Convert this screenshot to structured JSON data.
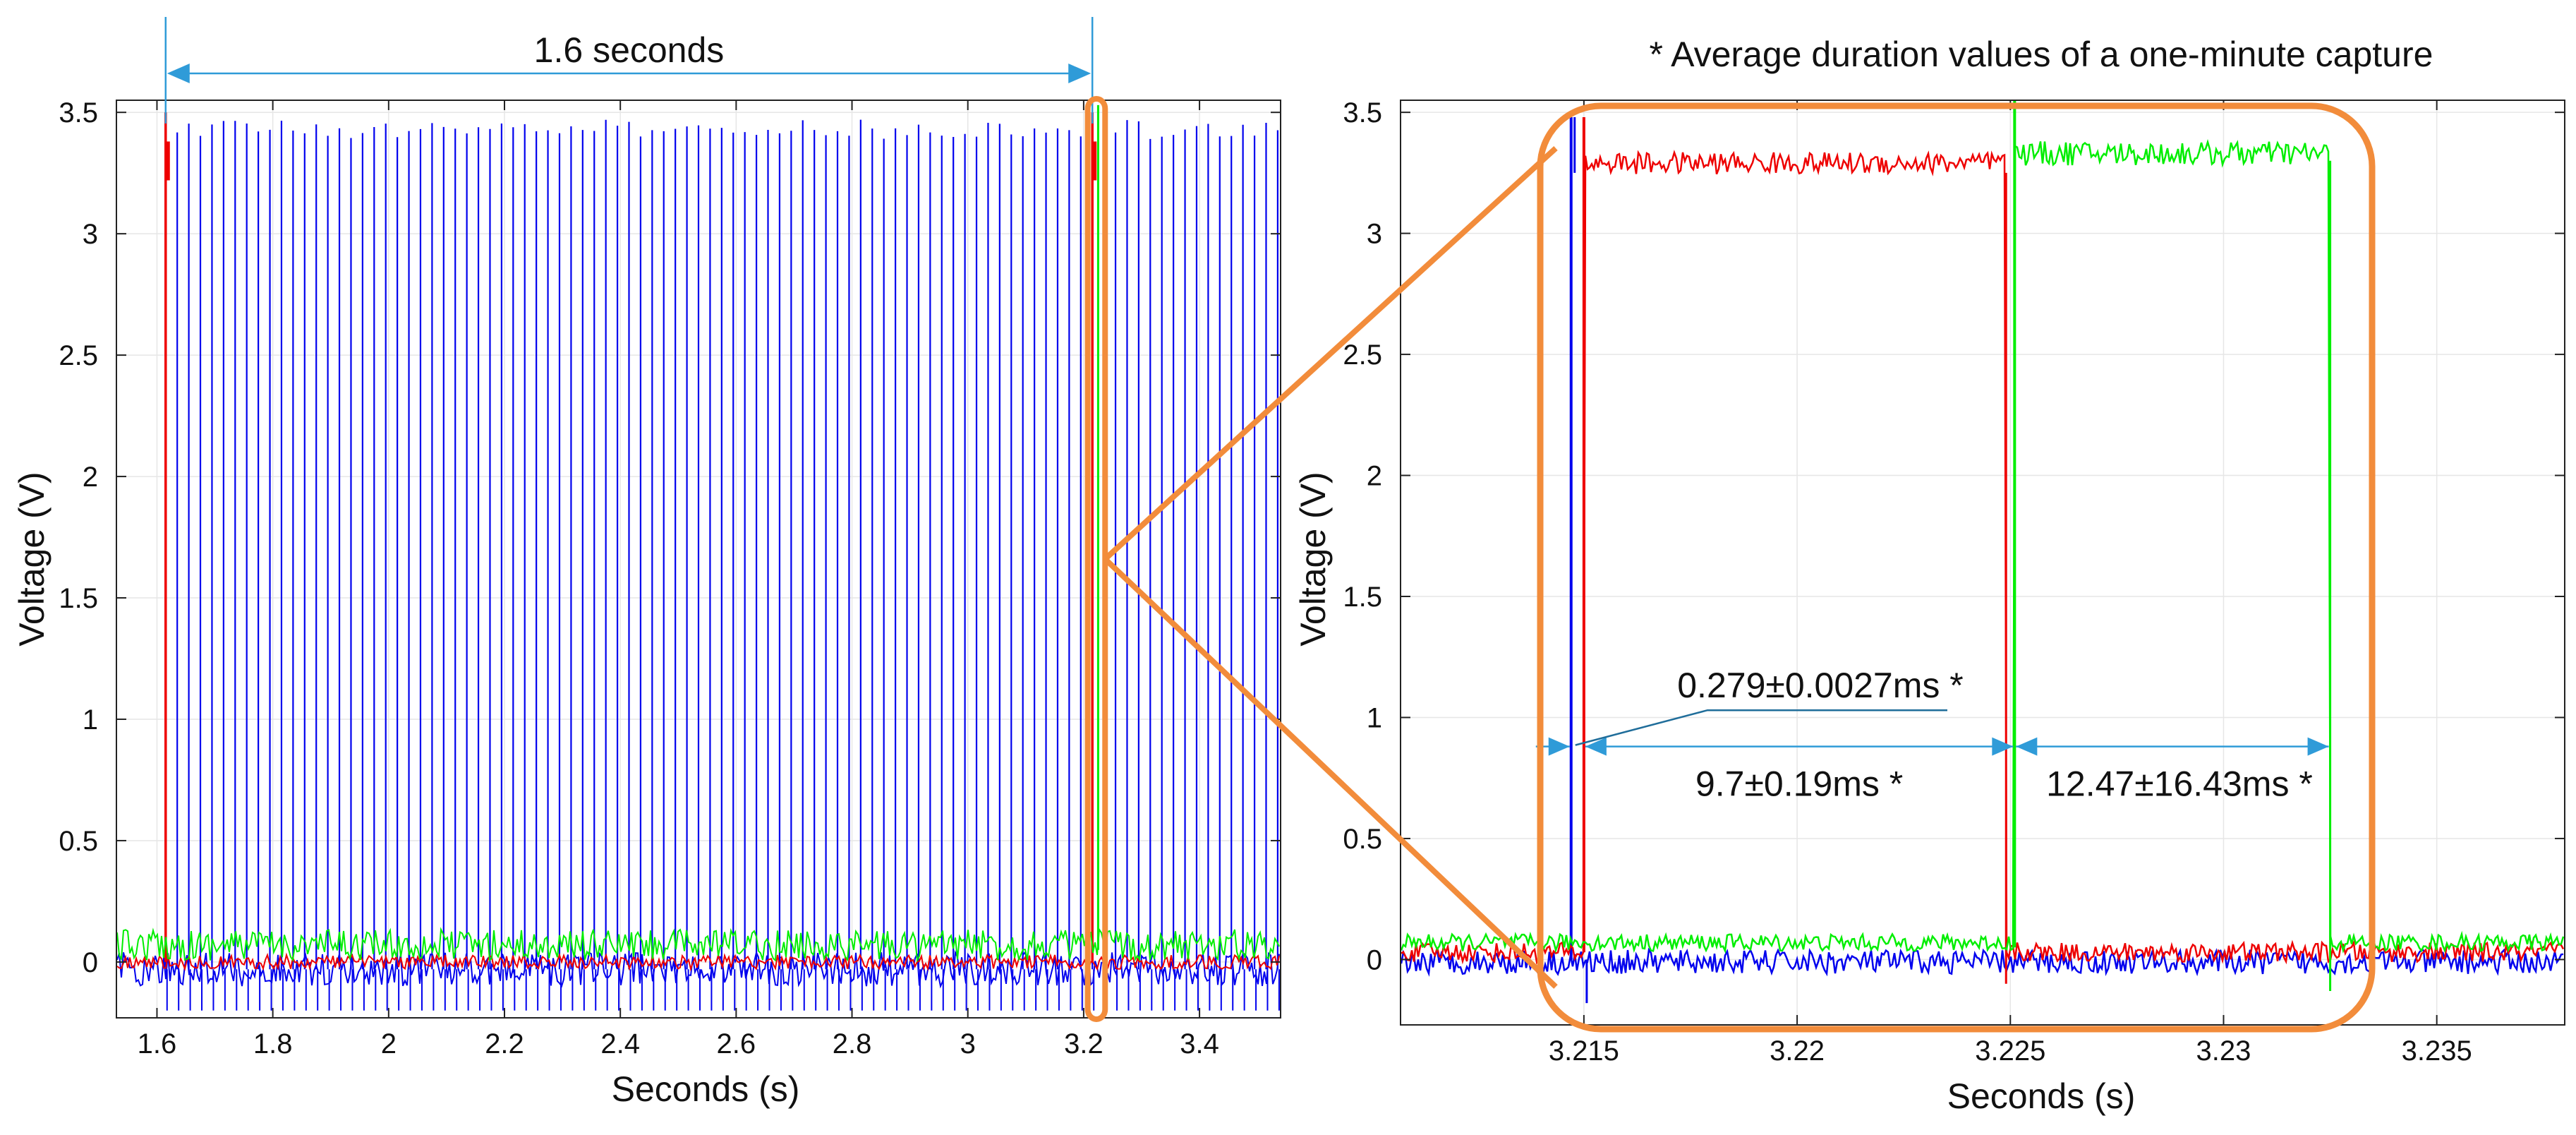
{
  "colors": {
    "blue": "#0000ee",
    "red": "#ee0000",
    "green": "#00ee00",
    "orange": "#f28c3b",
    "annotation": "#2f9bd8",
    "leader": "#1f6d9a",
    "frame": "#222222",
    "grid": "#e6e6e6"
  },
  "chart_data": [
    {
      "id": "overview",
      "type": "line",
      "title": "",
      "xlabel": "Seconds (s)",
      "ylabel": "Voltage (V)",
      "xlim": [
        1.53,
        3.54
      ],
      "ylim": [
        -0.23,
        3.55
      ],
      "xticks": [
        1.6,
        1.8,
        2,
        2.2,
        2.4,
        2.6,
        2.8,
        3,
        3.2,
        3.4
      ],
      "xtick_labels": [
        "1.6",
        "1.8",
        "2",
        "2.2",
        "2.4",
        "2.6",
        "2.8",
        "3",
        "3.2",
        "3.4"
      ],
      "yticks": [
        0,
        0.5,
        1,
        1.5,
        2,
        2.5,
        3,
        3.5
      ],
      "ytick_labels": [
        "0",
        "0.5",
        "1",
        "1.5",
        "2",
        "2.5",
        "3",
        "3.5"
      ],
      "series": [
        {
          "name": "blue",
          "color": "#0000ee",
          "baseline": -0.03,
          "pulse_period_s": 0.02,
          "pulse_peak": 3.47
        },
        {
          "name": "red",
          "color": "#ee0000",
          "baseline": 0.0,
          "pulse_times": [
            1.615,
            3.215
          ],
          "pulse_width_s": 0.0097,
          "high_level": 3.3
        },
        {
          "name": "green",
          "color": "#00ee00",
          "baseline": 0.07,
          "pulse_times": [
            3.225
          ],
          "pulse_width_s": 0.0075,
          "high_level": 3.33
        }
      ],
      "annotations": [
        {
          "text": "1.6 seconds",
          "x_from": 1.615,
          "x_to": 3.215
        }
      ],
      "zoom_window": [
        3.207,
        3.237
      ]
    },
    {
      "id": "zoom",
      "type": "line",
      "title": "* Average duration values of a one-minute capture",
      "xlabel": "Seconds (s)",
      "ylabel": "Voltage (V)",
      "xlim": [
        3.2107,
        3.238
      ],
      "ylim": [
        -0.27,
        3.55
      ],
      "xticks": [
        3.215,
        3.22,
        3.225,
        3.23,
        3.235
      ],
      "xtick_labels": [
        "3.215",
        "3.22",
        "3.225",
        "3.23",
        "3.235"
      ],
      "yticks": [
        0,
        0.5,
        1,
        1.5,
        2,
        2.5,
        3,
        3.5
      ],
      "ytick_labels": [
        "0",
        "0.5",
        "1",
        "1.5",
        "2",
        "2.5",
        "3",
        "3.5"
      ],
      "series": [
        {
          "name": "blue",
          "color": "#0000ee",
          "baseline": -0.01,
          "spike_at": 3.2147,
          "spike_peak": 3.48
        },
        {
          "name": "red",
          "color": "#ee0000",
          "baseline": 0.03,
          "high_start": 3.215,
          "high_end": 3.2249,
          "high_level": 3.29
        },
        {
          "name": "green",
          "color": "#00ee00",
          "baseline": 0.07,
          "high_start": 3.2251,
          "high_end": 3.2325,
          "high_level": 3.33
        }
      ],
      "annotations": [
        {
          "text": "0.279±0.0027ms *",
          "x_from": 3.2147,
          "x_to": 3.215
        },
        {
          "text": "9.7±0.19ms *",
          "x_from": 3.215,
          "x_to": 3.2251
        },
        {
          "text": "12.47±16.43ms *",
          "x_from": 3.2251,
          "x_to": 3.2325
        }
      ]
    }
  ]
}
